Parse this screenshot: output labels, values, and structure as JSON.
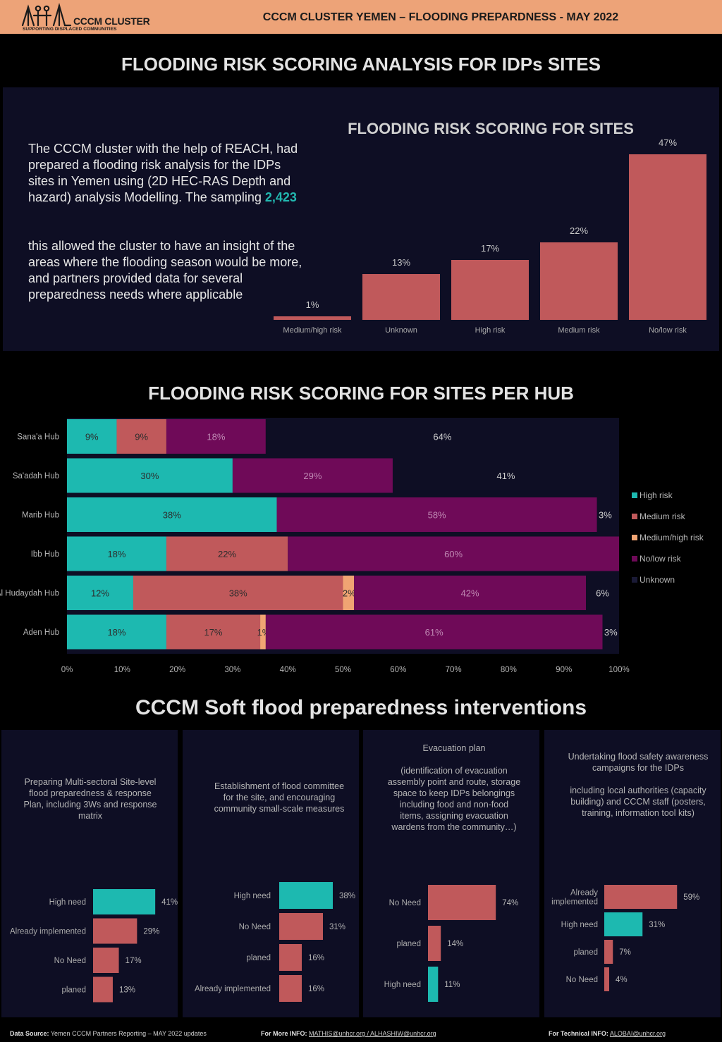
{
  "header": {
    "logo_name": "CCCM CLUSTER",
    "logo_tagline": "SUPPORTING DISPLACED COMMUNITIES",
    "title": "CCCM CLUSTER  YEMEN – FLOODING PREPARDNESS  - MAY 2022"
  },
  "colors": {
    "header_bg": "#eda378",
    "panel_bg": "#0e0e24",
    "high_risk": "#1db9b0",
    "medium_risk": "#c0595b",
    "medium_high_risk": "#f0a473",
    "no_low_risk": "#6f0a58",
    "unknown": "#0e0e24"
  },
  "section1": {
    "title": "FLOODING RISK SCORING ANALYSIS FOR IDPs SITES",
    "intro_part1": "The CCCM cluster with the help of REACH, had prepared a flooding risk analysis for the IDPs sites in Yemen using (2D HEC-RAS Depth and hazard) analysis Modelling. The sampling ",
    "sampling_value": "2,423",
    "intro_part2": "this allowed the cluster to have an insight of the areas where the flooding season would be more, and partners provided data for several preparedness needs where applicable"
  },
  "section2": {
    "title": "FLOODING RISK SCORING FOR SITES PER HUB"
  },
  "section3": {
    "title": "CCCM Soft flood preparedness interventions"
  },
  "chart_data": [
    {
      "type": "bar",
      "title": "FLOODING RISK SCORING FOR SITES",
      "categories": [
        "Medium/high risk",
        "Unknown",
        "High risk",
        "Medium risk",
        "No/low risk"
      ],
      "values": [
        1,
        13,
        17,
        22,
        47
      ],
      "value_labels": [
        "1%",
        "13%",
        "17%",
        "22%",
        "47%"
      ],
      "ylim": [
        0,
        50
      ],
      "grid": false
    },
    {
      "type": "bar",
      "orientation": "horizontal-stacked-100",
      "title": "FLOODING RISK SCORING FOR SITES PER HUB",
      "categories": [
        "Sana'a Hub",
        "Sa'adah Hub",
        "Marib Hub",
        "Ibb Hub",
        "Al Hudaydah Hub",
        "Aden Hub"
      ],
      "series": [
        {
          "name": "High risk",
          "values": [
            9,
            30,
            38,
            18,
            12,
            18
          ],
          "labels": [
            "9%",
            "30%",
            "38%",
            "18%",
            "12%",
            "18%"
          ]
        },
        {
          "name": "Medium risk",
          "values": [
            9,
            0,
            0,
            22,
            38,
            17
          ],
          "labels": [
            "9%",
            "",
            "",
            "22%",
            "38%",
            "17%"
          ]
        },
        {
          "name": "Medium/high risk",
          "values": [
            0,
            0,
            0,
            0,
            2,
            1
          ],
          "labels": [
            "",
            "",
            "",
            "",
            "2%",
            "1%"
          ]
        },
        {
          "name": "No/low risk",
          "values": [
            18,
            29,
            58,
            60,
            42,
            61
          ],
          "labels": [
            "18%",
            "29%",
            "58%",
            "60%",
            "42%",
            "61%"
          ]
        },
        {
          "name": "Unknown",
          "values": [
            64,
            41,
            3,
            0,
            6,
            3
          ],
          "labels": [
            "64%",
            "41%",
            "3%",
            "",
            "6%",
            "3%"
          ]
        }
      ],
      "x_ticks": [
        "0%",
        "10%",
        "20%",
        "30%",
        "40%",
        "50%",
        "60%",
        "70%",
        "80%",
        "90%",
        "100%"
      ],
      "xlim": [
        0,
        100
      ],
      "legend": "right"
    },
    {
      "type": "bar",
      "orientation": "horizontal",
      "title": "Preparing Multi-sectoral Site-level flood preparedness & response Plan, including 3Ws and response matrix",
      "categories": [
        "High need",
        "Already implemented",
        "No Need",
        "planed"
      ],
      "values": [
        41,
        29,
        17,
        13
      ],
      "value_labels": [
        "41%",
        "29%",
        "17%",
        "13%"
      ]
    },
    {
      "type": "bar",
      "orientation": "horizontal",
      "title": "Establishment of flood committee for the site, and encouraging community small-scale measures",
      "categories": [
        "High need",
        "No Need",
        "planed",
        "Already implemented"
      ],
      "values": [
        38,
        31,
        16,
        16
      ],
      "value_labels": [
        "38%",
        "31%",
        "16%",
        "16%"
      ]
    },
    {
      "type": "bar",
      "orientation": "horizontal",
      "title": "Evacuation plan\n\n(identification of evacuation assembly point and route, storage space to keep IDPs belongings including food and non-food items, assigning evacuation wardens from the community…)",
      "categories": [
        "No Need",
        "planed",
        "High need"
      ],
      "values": [
        74,
        14,
        11
      ],
      "value_labels": [
        "74%",
        "14%",
        "11%"
      ]
    },
    {
      "type": "bar",
      "orientation": "horizontal",
      "title": "Undertaking flood safety awareness campaigns for the IDPs\n\nincluding local authorities (capacity building) and CCCM staff (posters, training, information tool kits)",
      "categories": [
        "Already implemented",
        "High need",
        "planed",
        "No Need"
      ],
      "values": [
        59,
        31,
        7,
        4
      ],
      "value_labels": [
        "59%",
        "31%",
        "7%",
        "4%"
      ]
    }
  ],
  "footer": {
    "data_source_label": "Data Source:",
    "data_source_text": "Yemen CCCM Partners Reporting – MAY 2022 updates",
    "more_info_label": "For More INFO:",
    "more_info_contacts": "MATHIS@unhcr.org / ALHASHIW@unhcr.org",
    "tech_info_label": "For Technical INFO:",
    "tech_info_contact": "ALOBAI@unhcr.org"
  }
}
